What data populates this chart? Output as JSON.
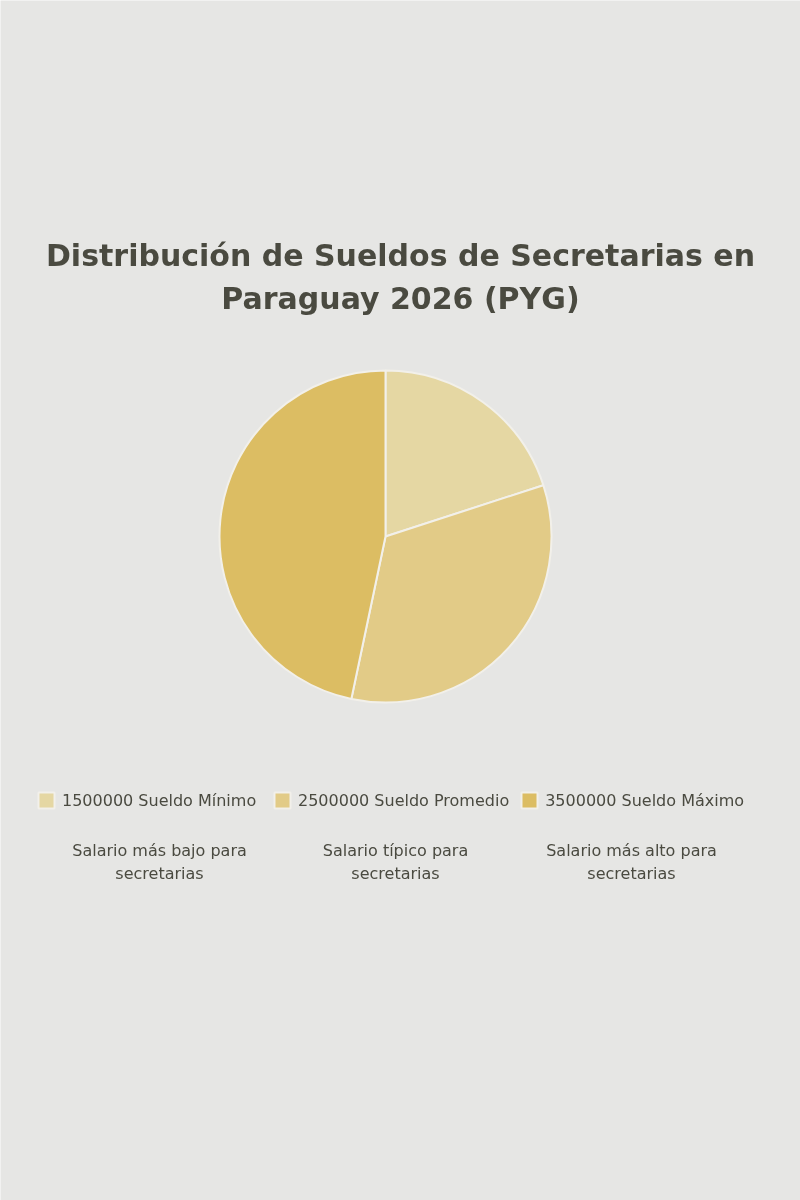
{
  "chart_data": {
    "type": "pie",
    "title": "Distribución de Sueldos de Secretarias en Paraguay 2026 (PYG)",
    "categories": [
      "1500000 Sueldo Mínimo",
      "2500000 Sueldo Promedio",
      "3500000 Sueldo Máximo"
    ],
    "values": [
      20,
      33.3,
      46.7
    ],
    "colors": [
      "#e5d7a3",
      "#e2cb87",
      "#dcbd63"
    ],
    "legend": "bottom",
    "annotations": [
      "Salario más bajo para secretarias",
      "Salario típico para secretarias",
      "Salario más alto para secretarias"
    ]
  }
}
